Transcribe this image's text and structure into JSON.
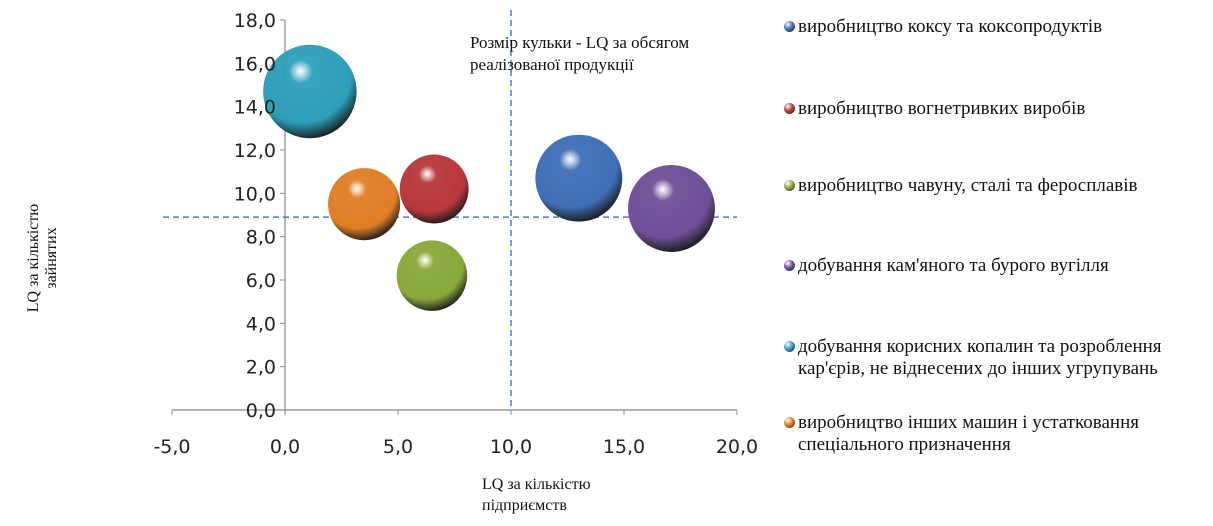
{
  "chart_data": {
    "type": "scatter",
    "subtype": "bubble",
    "xlabel": "LQ  за кількістю підприємств",
    "ylabel": "LQ  за кількістю зайнятих",
    "annotation": "Розмір кульки - LQ  за обсягом реалізованої продукції",
    "xlim": [
      -5,
      20
    ],
    "ylim": [
      0,
      18
    ],
    "x_ticks": [
      "-5,0",
      "0,0",
      "5,0",
      "10,0",
      "15,0",
      "20,0"
    ],
    "y_ticks": [
      "0,0",
      "2,0",
      "4,0",
      "6,0",
      "8,0",
      "10,0",
      "12,0",
      "14,0",
      "16,0",
      "18,0"
    ],
    "reference_lines": {
      "x": 10.0,
      "y": 8.9
    },
    "grid": false,
    "legend_position": "right",
    "series": [
      {
        "name": "виробництво коксу та коксопродуктів",
        "x": 13.0,
        "y": 10.7,
        "size": 5.3,
        "color": "#3f6fb6"
      },
      {
        "name": "виробництво вогнетривких виробів",
        "x": 6.6,
        "y": 10.2,
        "size": 4.2,
        "color": "#b8383a"
      },
      {
        "name": "виробництво чавуну, сталі та феросплавів",
        "x": 6.5,
        "y": 6.2,
        "size": 4.3,
        "color": "#8aa83a"
      },
      {
        "name": "добування кам'яного та бурого вугілля",
        "x": 17.1,
        "y": 9.3,
        "size": 5.3,
        "color": "#6e4f99"
      },
      {
        "name": "добування корисних копалин та розроблення кар'єрів, не віднесених до інших угрупувань",
        "x": 1.1,
        "y": 14.7,
        "size": 5.7,
        "color": "#2e9fbb"
      },
      {
        "name": "виробництво інших машин і устатковання спеціального призначення",
        "x": 3.5,
        "y": 9.5,
        "size": 4.4,
        "color": "#e07e26"
      }
    ]
  }
}
